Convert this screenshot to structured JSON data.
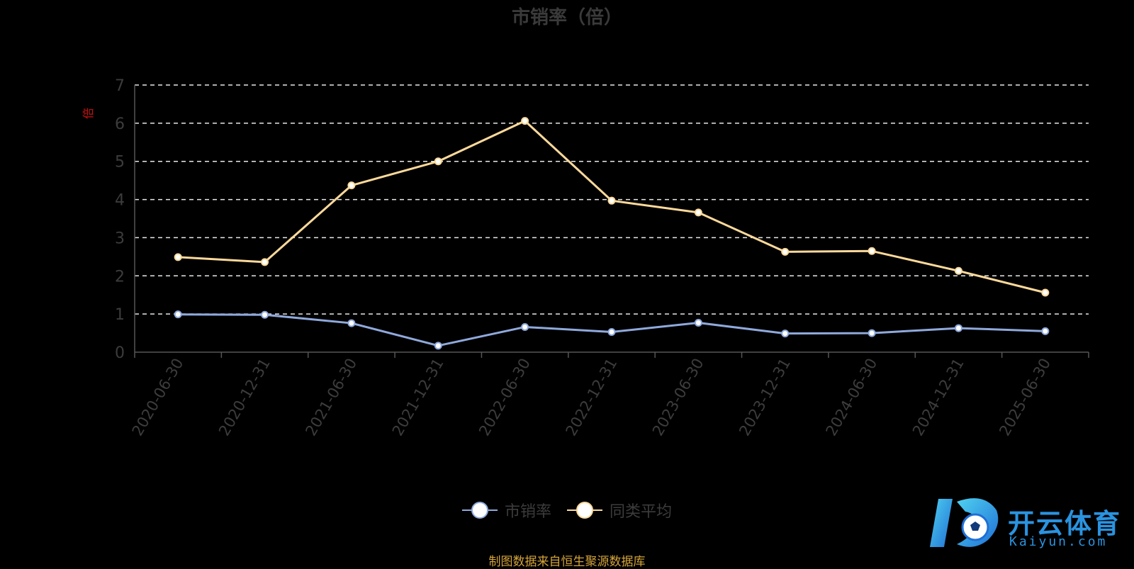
{
  "title": "市销率（倍）",
  "source_note": "制图数据来自恒生聚源数据库",
  "logo": {
    "cn": "开云体育",
    "en": "Kaiyun.com"
  },
  "colors": {
    "series1": "#8fa9dc",
    "series2": "#fbd99a",
    "grid": "#e8e8e8",
    "axis_text": "#3c3c3c",
    "y_unit": "#cc1111"
  },
  "chart_data": {
    "type": "line",
    "title": "市销率（倍）",
    "ylabel": "倍",
    "ylim": [
      0,
      7
    ],
    "yticks": [
      0,
      1,
      2,
      3,
      4,
      5,
      6,
      7
    ],
    "grid": true,
    "legend_position": "bottom",
    "categories": [
      "2020-06-30",
      "2020-12-31",
      "2021-06-30",
      "2021-12-31",
      "2022-06-30",
      "2022-12-31",
      "2023-06-30",
      "2023-12-31",
      "2024-06-30",
      "2024-12-31",
      "2025-06-30"
    ],
    "series": [
      {
        "name": "市销率",
        "values": [
          0.99,
          0.98,
          0.76,
          0.17,
          0.66,
          0.53,
          0.77,
          0.49,
          0.5,
          0.63,
          0.55
        ]
      },
      {
        "name": "同类平均",
        "values": [
          2.49,
          2.36,
          4.37,
          5.0,
          6.06,
          3.97,
          3.66,
          2.63,
          2.65,
          2.13,
          1.56
        ]
      }
    ]
  }
}
